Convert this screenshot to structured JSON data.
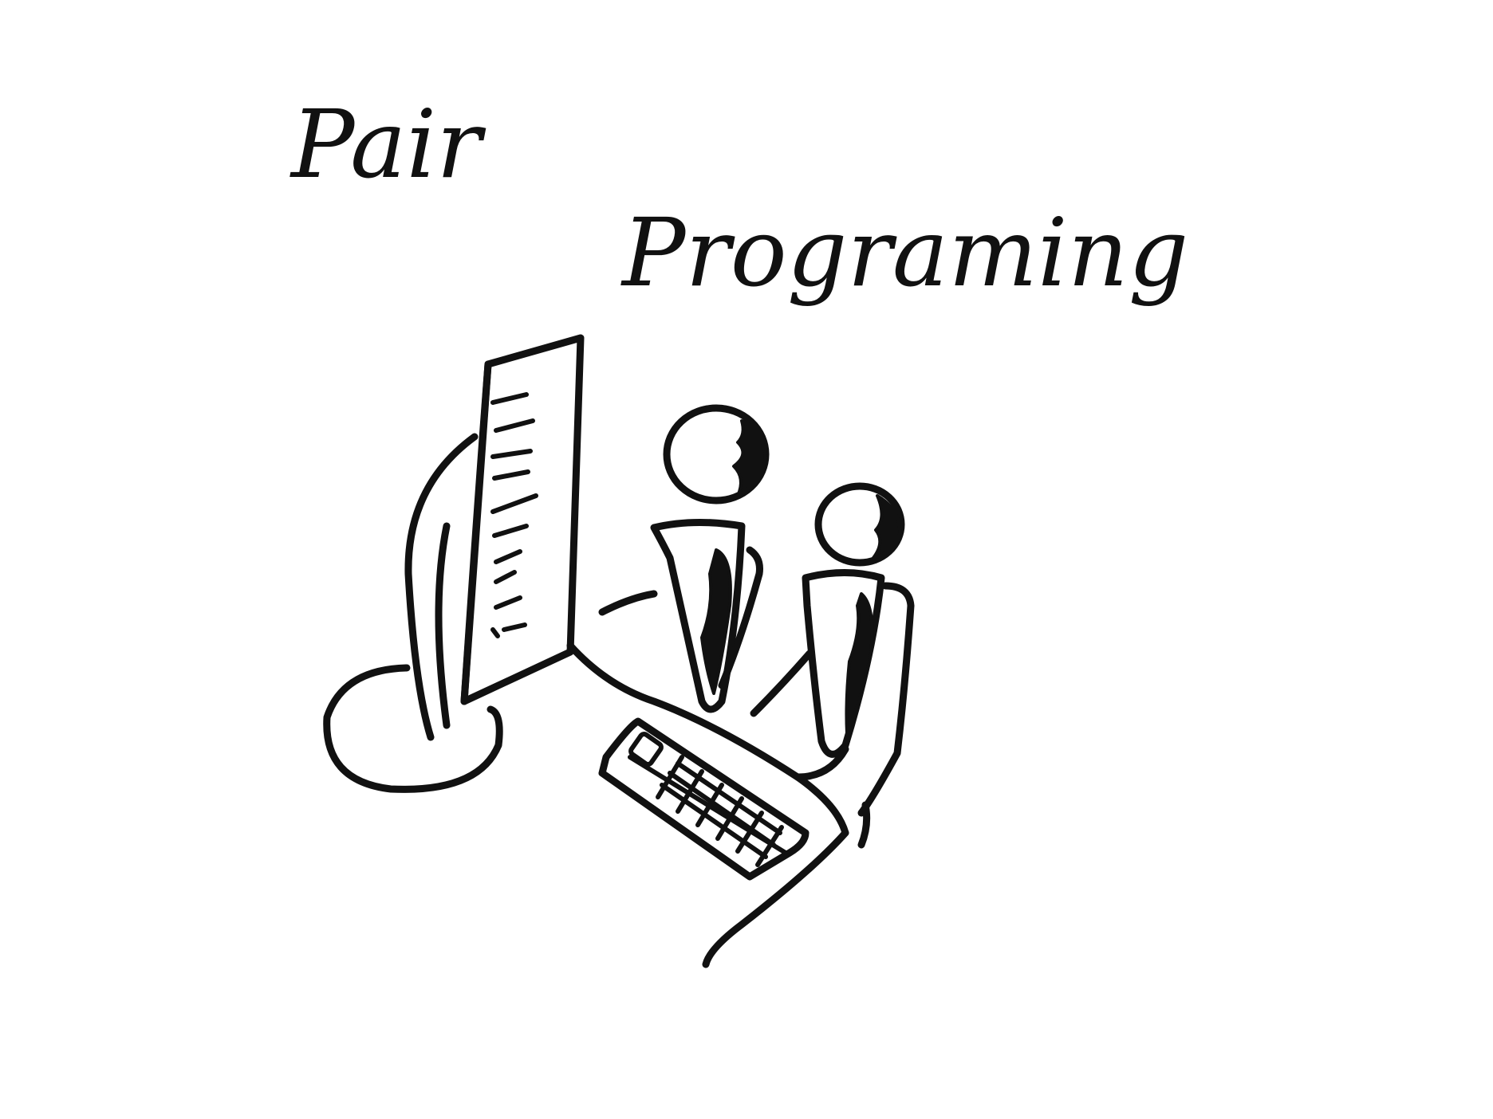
{
  "title_line_1": "Pair",
  "title_line_2": "Programing",
  "colors": {
    "ink": "#111111",
    "paper": "#ffffff"
  },
  "icons": [
    "computer-monitor-icon",
    "keyboard-icon",
    "person-icon"
  ]
}
